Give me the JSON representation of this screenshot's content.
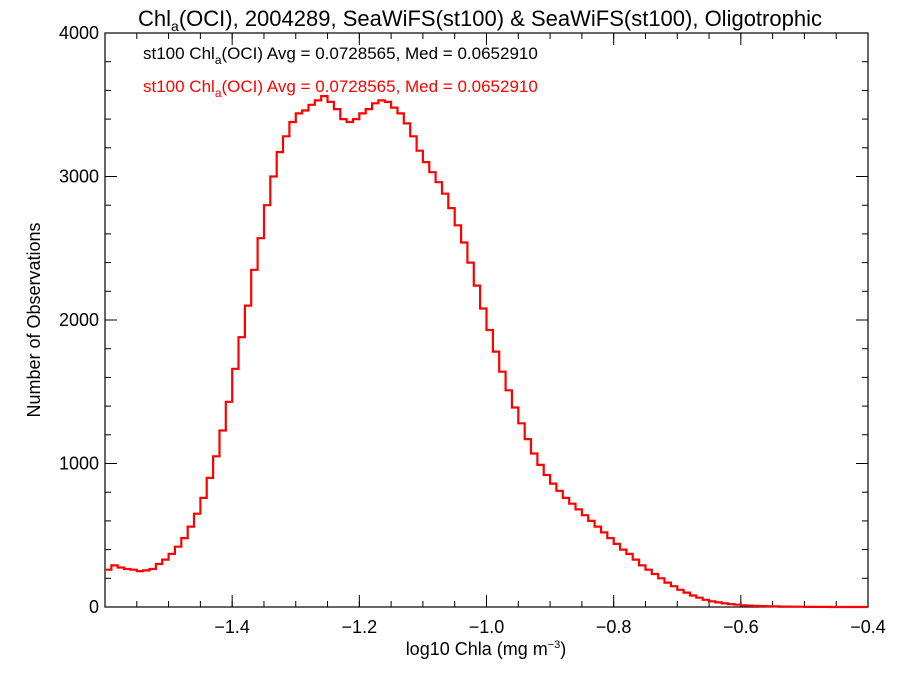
{
  "chart_data": {
    "type": "histogram",
    "title": {
      "prefix": "Chl",
      "sub": "a",
      "suffix": "(OCI), 2004289, SeaWiFS(st100) & SeaWiFS(st100), Oligotrophic"
    },
    "xlabel": {
      "text": "log10 Chla (mg m",
      "sup": "−3",
      "close": ")"
    },
    "ylabel": "Number of Observations",
    "xlim": [
      -1.6,
      -0.4
    ],
    "ylim": [
      0,
      4000
    ],
    "x_ticks": [
      -1.4,
      -1.2,
      -1.0,
      -0.8,
      -0.6,
      -0.4
    ],
    "x_tick_labels": [
      "−1.4",
      "−1.2",
      "−1.0",
      "−0.8",
      "−0.6",
      "−0.4"
    ],
    "y_ticks": [
      0,
      1000,
      2000,
      3000,
      4000
    ],
    "y_tick_labels": [
      "0",
      "1000",
      "2000",
      "3000",
      "4000"
    ],
    "legend": [
      {
        "prefix": "st100 Chl",
        "sub": "a",
        "suffix": "(OCI) Avg = 0.0728565, Med = 0.0652910",
        "color": "#000000"
      },
      {
        "prefix": "st100 Chl",
        "sub": "a",
        "suffix": "(OCI) Avg = 0.0728565, Med = 0.0652910",
        "color": "#ff0000"
      }
    ],
    "series": [
      {
        "color": "#ff0000",
        "style": "step",
        "points": [
          [
            -1.6,
            260
          ],
          [
            -1.59,
            290
          ],
          [
            -1.58,
            275
          ],
          [
            -1.57,
            265
          ],
          [
            -1.56,
            260
          ],
          [
            -1.55,
            250
          ],
          [
            -1.54,
            255
          ],
          [
            -1.53,
            265
          ],
          [
            -1.52,
            300
          ],
          [
            -1.51,
            330
          ],
          [
            -1.5,
            370
          ],
          [
            -1.49,
            420
          ],
          [
            -1.48,
            480
          ],
          [
            -1.47,
            560
          ],
          [
            -1.46,
            650
          ],
          [
            -1.45,
            760
          ],
          [
            -1.44,
            900
          ],
          [
            -1.43,
            1050
          ],
          [
            -1.42,
            1230
          ],
          [
            -1.41,
            1430
          ],
          [
            -1.4,
            1660
          ],
          [
            -1.39,
            1880
          ],
          [
            -1.38,
            2100
          ],
          [
            -1.37,
            2350
          ],
          [
            -1.36,
            2570
          ],
          [
            -1.35,
            2800
          ],
          [
            -1.34,
            3000
          ],
          [
            -1.33,
            3170
          ],
          [
            -1.32,
            3280
          ],
          [
            -1.31,
            3380
          ],
          [
            -1.3,
            3440
          ],
          [
            -1.29,
            3460
          ],
          [
            -1.28,
            3500
          ],
          [
            -1.27,
            3530
          ],
          [
            -1.26,
            3560
          ],
          [
            -1.25,
            3520
          ],
          [
            -1.24,
            3470
          ],
          [
            -1.23,
            3400
          ],
          [
            -1.22,
            3380
          ],
          [
            -1.21,
            3400
          ],
          [
            -1.2,
            3440
          ],
          [
            -1.19,
            3470
          ],
          [
            -1.18,
            3510
          ],
          [
            -1.17,
            3530
          ],
          [
            -1.16,
            3520
          ],
          [
            -1.15,
            3480
          ],
          [
            -1.14,
            3440
          ],
          [
            -1.13,
            3370
          ],
          [
            -1.12,
            3280
          ],
          [
            -1.11,
            3180
          ],
          [
            -1.1,
            3100
          ],
          [
            -1.09,
            3030
          ],
          [
            -1.08,
            2960
          ],
          [
            -1.07,
            2880
          ],
          [
            -1.06,
            2780
          ],
          [
            -1.05,
            2660
          ],
          [
            -1.04,
            2540
          ],
          [
            -1.03,
            2400
          ],
          [
            -1.02,
            2240
          ],
          [
            -1.01,
            2080
          ],
          [
            -1.0,
            1930
          ],
          [
            -0.99,
            1780
          ],
          [
            -0.98,
            1640
          ],
          [
            -0.97,
            1510
          ],
          [
            -0.96,
            1390
          ],
          [
            -0.95,
            1280
          ],
          [
            -0.94,
            1170
          ],
          [
            -0.93,
            1070
          ],
          [
            -0.92,
            990
          ],
          [
            -0.91,
            920
          ],
          [
            -0.9,
            860
          ],
          [
            -0.89,
            810
          ],
          [
            -0.88,
            760
          ],
          [
            -0.87,
            720
          ],
          [
            -0.86,
            680
          ],
          [
            -0.85,
            640
          ],
          [
            -0.84,
            600
          ],
          [
            -0.83,
            560
          ],
          [
            -0.82,
            520
          ],
          [
            -0.81,
            480
          ],
          [
            -0.8,
            440
          ],
          [
            -0.79,
            400
          ],
          [
            -0.78,
            370
          ],
          [
            -0.77,
            330
          ],
          [
            -0.76,
            290
          ],
          [
            -0.75,
            260
          ],
          [
            -0.74,
            230
          ],
          [
            -0.73,
            200
          ],
          [
            -0.72,
            170
          ],
          [
            -0.71,
            145
          ],
          [
            -0.7,
            120
          ],
          [
            -0.69,
            100
          ],
          [
            -0.68,
            80
          ],
          [
            -0.67,
            65
          ],
          [
            -0.66,
            50
          ],
          [
            -0.65,
            40
          ],
          [
            -0.64,
            32
          ],
          [
            -0.63,
            25
          ],
          [
            -0.62,
            20
          ],
          [
            -0.61,
            16
          ],
          [
            -0.6,
            12
          ],
          [
            -0.59,
            10
          ],
          [
            -0.58,
            8
          ],
          [
            -0.57,
            6
          ],
          [
            -0.56,
            5
          ],
          [
            -0.55,
            4
          ],
          [
            -0.54,
            3
          ],
          [
            -0.53,
            3
          ],
          [
            -0.52,
            2
          ],
          [
            -0.51,
            2
          ],
          [
            -0.5,
            1
          ],
          [
            -0.49,
            1
          ],
          [
            -0.48,
            1
          ],
          [
            -0.47,
            1
          ],
          [
            -0.46,
            0
          ],
          [
            -0.45,
            0
          ],
          [
            -0.44,
            0
          ],
          [
            -0.43,
            0
          ],
          [
            -0.42,
            0
          ],
          [
            -0.41,
            0
          ],
          [
            -0.4,
            0
          ]
        ]
      }
    ]
  }
}
